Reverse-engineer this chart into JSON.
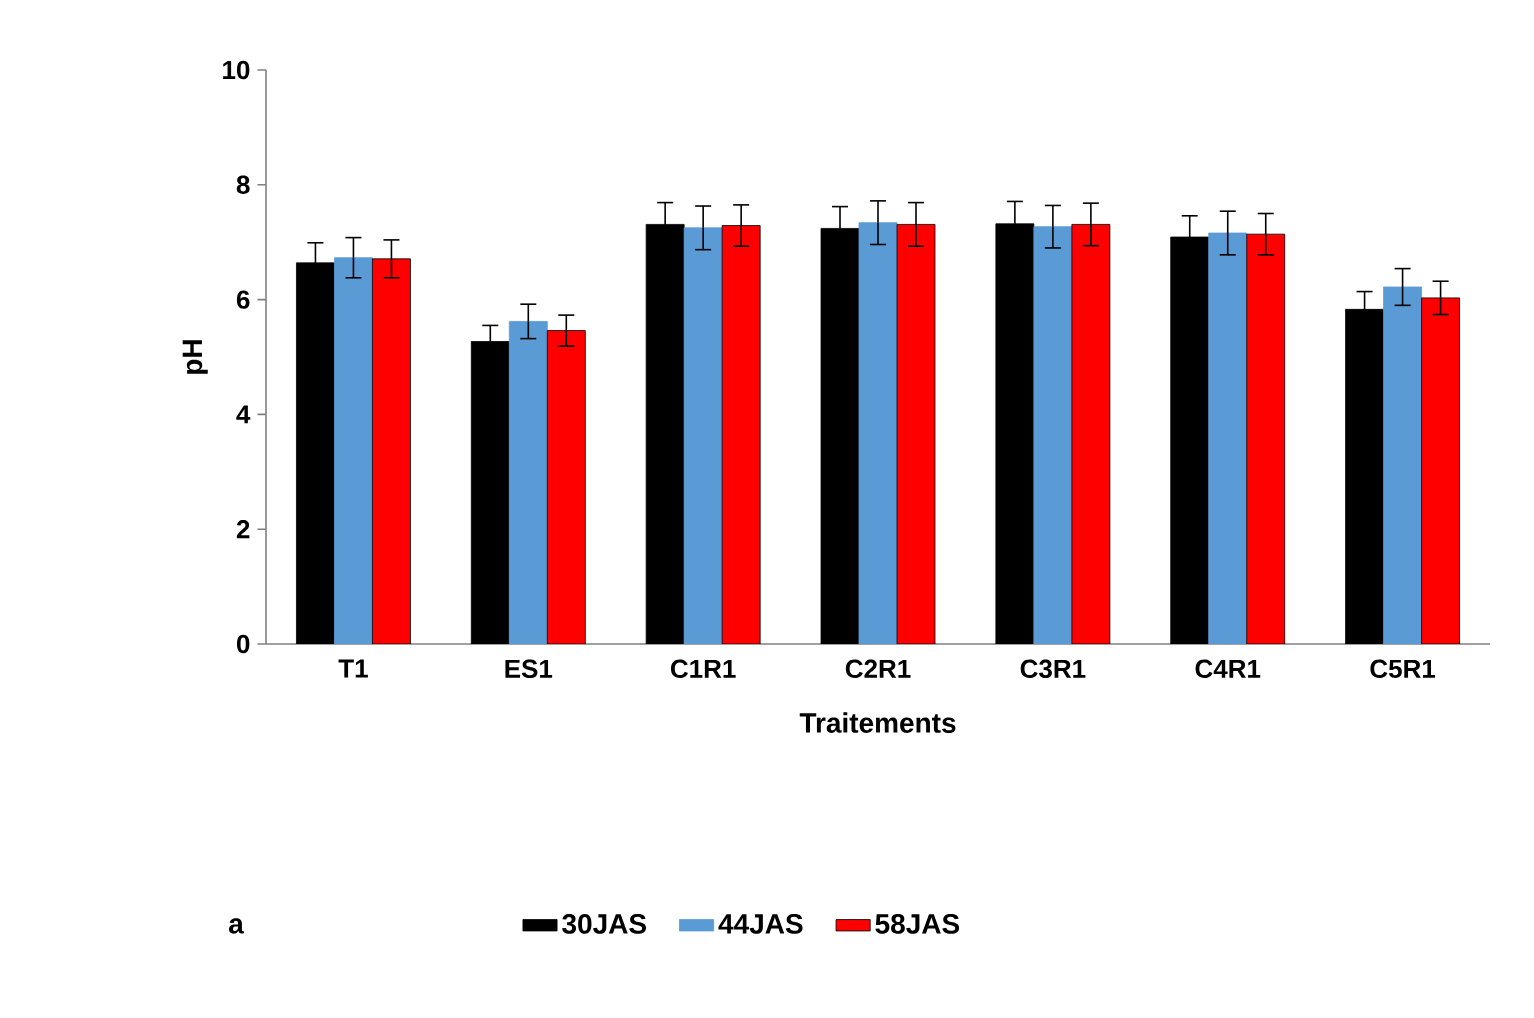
{
  "chart_data": {
    "type": "bar",
    "xlabel": "Traitements",
    "ylabel": "pH",
    "categories": [
      "T1",
      "ES1",
      "C1R1",
      "C2R1",
      "C3R1",
      "C4R1",
      "C5R1"
    ],
    "series": [
      {
        "name": "30JAS",
        "color": "#000000",
        "values": [
          6.64,
          5.27,
          7.31,
          7.24,
          7.32,
          7.09,
          5.83
        ],
        "errors": [
          0.35,
          0.28,
          0.38,
          0.38,
          0.39,
          0.37,
          0.31
        ]
      },
      {
        "name": "44JAS",
        "color": "#5b9bd5",
        "values": [
          6.73,
          5.62,
          7.25,
          7.34,
          7.27,
          7.16,
          6.22
        ],
        "errors": [
          0.35,
          0.3,
          0.38,
          0.38,
          0.37,
          0.38,
          0.32
        ]
      },
      {
        "name": "58JAS",
        "color": "#ff0000",
        "values": [
          6.71,
          5.46,
          7.29,
          7.31,
          7.31,
          7.14,
          6.03
        ],
        "errors": [
          0.33,
          0.27,
          0.36,
          0.38,
          0.37,
          0.36,
          0.29
        ]
      }
    ],
    "ylim": [
      0,
      10
    ],
    "yticks": [
      0,
      2,
      4,
      6,
      8,
      10
    ],
    "grid": false,
    "legend": "bottom",
    "annotations": [
      "a"
    ]
  }
}
